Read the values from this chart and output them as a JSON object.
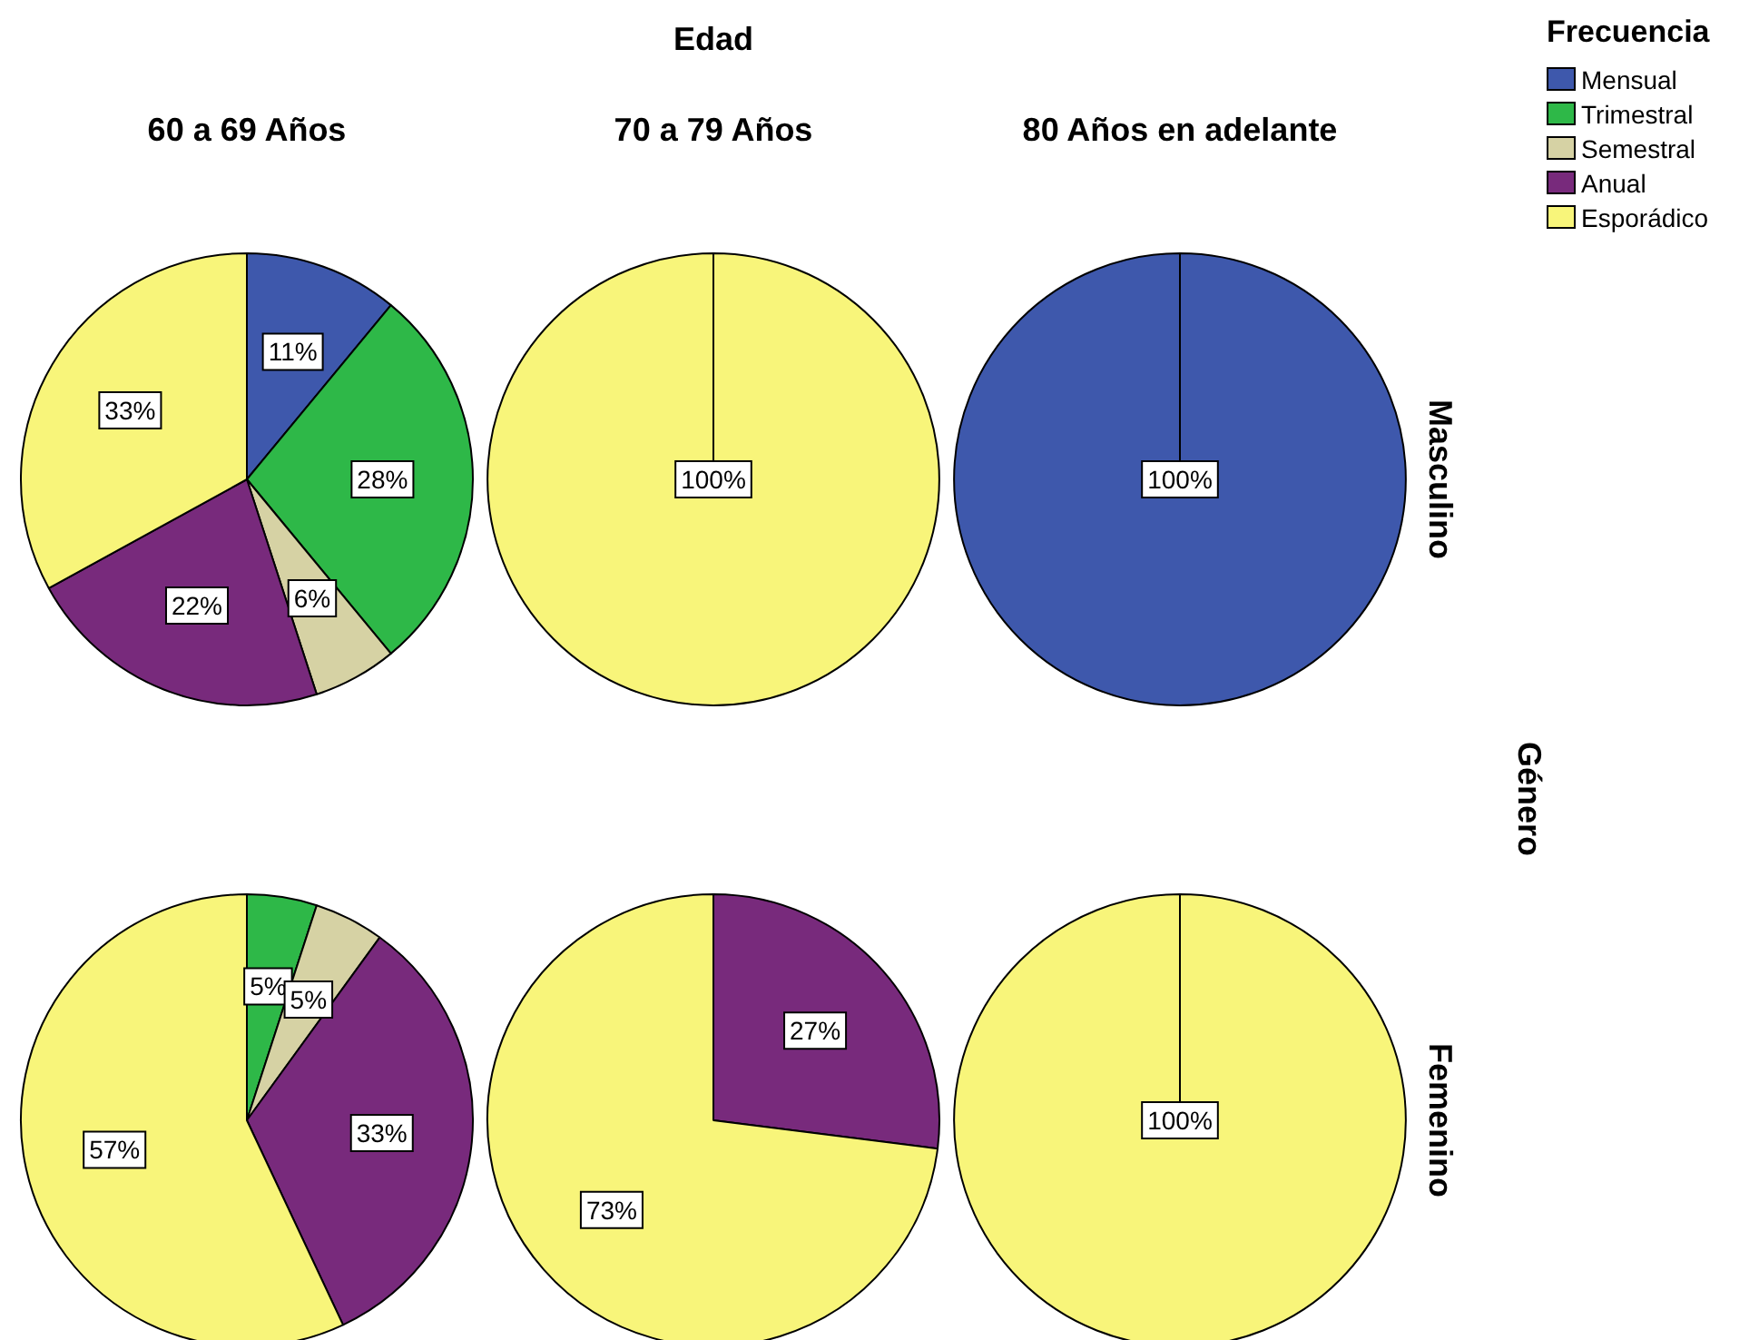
{
  "chart_data": {
    "type": "pie",
    "title": "Edad",
    "ylabel": "Género",
    "legend": "top right",
    "legend_title": "Frecuencia",
    "annotations": [
      "60 a 69 Años",
      "70 a 79 Años",
      "80 Años en adelante",
      "Masculino",
      "Femenino"
    ],
    "categories": [
      "Mensual",
      "Trimestral",
      "Semestral",
      "Anual",
      "Esporádico"
    ],
    "colors": [
      "#3e58ac",
      "#2eb848",
      "#d6d2a4",
      "#782a7c",
      "#f8f57a"
    ],
    "series": [
      {
        "values": [
          11,
          28,
          6,
          22,
          33
        ],
        "value_labels": [
          "11%",
          "28%",
          "6%",
          "22%",
          "33%"
        ]
      },
      {
        "values": [
          0,
          0,
          0,
          0,
          100
        ],
        "value_labels": [
          null,
          null,
          null,
          null,
          "100%"
        ]
      },
      {
        "values": [
          100,
          0,
          0,
          0,
          0
        ],
        "value_labels": [
          "100%",
          null,
          null,
          null,
          null
        ]
      },
      {
        "values": [
          0,
          5,
          5,
          33,
          57
        ],
        "value_labels": [
          null,
          "5%",
          "5%",
          "33%",
          "57%"
        ]
      },
      {
        "values": [
          0,
          0,
          0,
          27,
          73
        ],
        "value_labels": [
          null,
          null,
          null,
          "27%",
          "73%"
        ]
      },
      {
        "values": [
          0,
          0,
          0,
          0,
          100
        ],
        "value_labels": [
          null,
          null,
          null,
          null,
          "100%"
        ]
      }
    ]
  }
}
